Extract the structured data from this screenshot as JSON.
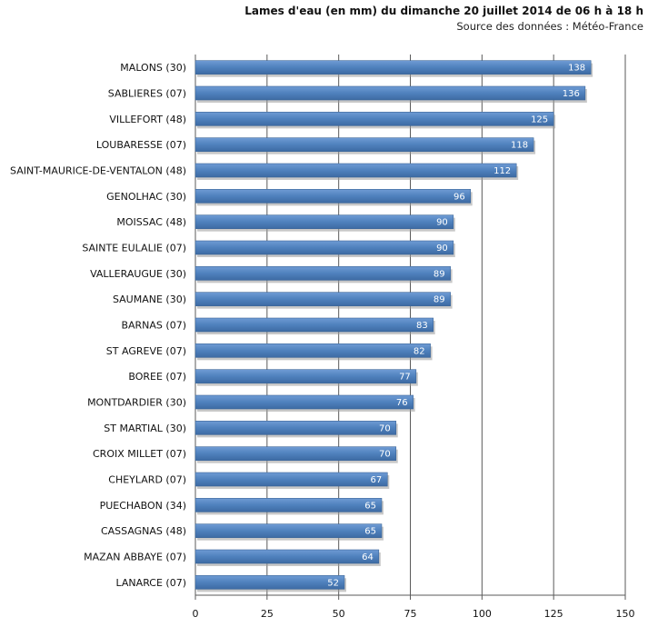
{
  "chart_data": {
    "type": "bar",
    "orientation": "horizontal",
    "title": "Lames d'eau (en mm) du dimanche  20 juillet  2014 de 06 h à 18 h",
    "subtitle": "Source des données : Météo-France",
    "categories": [
      "MALONS (30)",
      "SABLIERES (07)",
      "VILLEFORT (48)",
      "LOUBARESSE (07)",
      "SAINT-MAURICE-DE-VENTALON (48)",
      "GENOLHAC (30)",
      "MOISSAC (48)",
      "SAINTE EULALIE (07)",
      "VALLERAUGUE (30)",
      "SAUMANE (30)",
      "BARNAS (07)",
      "ST AGREVE (07)",
      "BOREE (07)",
      "MONTDARDIER (30)",
      "ST MARTIAL (30)",
      "CROIX MILLET (07)",
      "CHEYLARD (07)",
      "PUECHABON (34)",
      "CASSAGNAS (48)",
      "MAZAN ABBAYE (07)",
      "LANARCE (07)"
    ],
    "values": [
      138,
      136,
      125,
      118,
      112,
      96,
      90,
      90,
      89,
      89,
      83,
      82,
      77,
      76,
      70,
      70,
      67,
      65,
      65,
      64,
      52
    ],
    "xlim": [
      0,
      150
    ],
    "xticks": [
      0,
      25,
      50,
      75,
      100,
      125,
      150
    ],
    "grid": "vertical",
    "legend": "none",
    "data_labels": true,
    "bar_color": "#4f81bd",
    "label_color": "#ffffff"
  }
}
